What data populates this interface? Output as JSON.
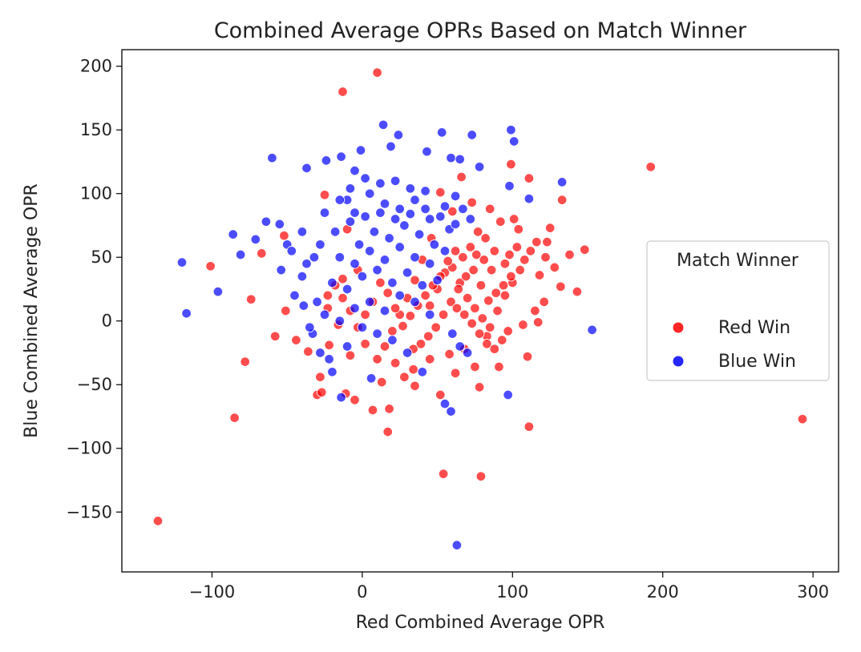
{
  "chart_data": {
    "type": "scatter",
    "title": "Combined Average OPRs Based on Match Winner",
    "xlabel": "Red Combined Average OPR",
    "ylabel": "Blue Combined Average OPR",
    "xlim": [
      -160,
      317
    ],
    "ylim": [
      -197,
      213
    ],
    "xticks": [
      -100,
      0,
      100,
      200,
      300
    ],
    "yticks": [
      -150,
      -100,
      -50,
      0,
      50,
      100,
      150,
      200
    ],
    "xtick_labels": [
      "−100",
      "0",
      "100",
      "200",
      "300"
    ],
    "ytick_labels": [
      "−150",
      "−100",
      "−50",
      "0",
      "50",
      "100",
      "150",
      "200"
    ],
    "grid": false,
    "legend": {
      "title": "Match Winner",
      "placement": "center-right",
      "entries": [
        "Red Win",
        "Blue Win"
      ]
    },
    "series": [
      {
        "name": "Red Win",
        "color": "#ff0000",
        "points": [
          [
            10,
            195
          ],
          [
            -13,
            180
          ],
          [
            192,
            121
          ],
          [
            293,
            -77
          ],
          [
            -136,
            -157
          ],
          [
            -85,
            -76
          ],
          [
            -78,
            -32
          ],
          [
            -101,
            43
          ],
          [
            -74,
            17
          ],
          [
            -67,
            53
          ],
          [
            -58,
            -12
          ],
          [
            -52,
            67
          ],
          [
            -51,
            8
          ],
          [
            -44,
            -15
          ],
          [
            -36,
            -24
          ],
          [
            -30,
            -58
          ],
          [
            -27,
            -56
          ],
          [
            -28,
            -44
          ],
          [
            -25,
            99
          ],
          [
            -11,
            -57
          ],
          [
            -5,
            -62
          ],
          [
            7,
            -70
          ],
          [
            18,
            -69
          ],
          [
            17,
            -87
          ],
          [
            13,
            -48
          ],
          [
            28,
            -44
          ],
          [
            35,
            -51
          ],
          [
            54,
            -120
          ],
          [
            79,
            -122
          ],
          [
            78,
            -52
          ],
          [
            52,
            -58
          ],
          [
            62,
            -41
          ],
          [
            75,
            -36
          ],
          [
            91,
            -36
          ],
          [
            111,
            -83
          ],
          [
            110,
            -28
          ],
          [
            148,
            56
          ],
          [
            143,
            23
          ],
          [
            133,
            95
          ],
          [
            132,
            27
          ],
          [
            125,
            73
          ],
          [
            121,
            15
          ],
          [
            117,
            -1
          ],
          [
            111,
            112
          ],
          [
            99,
            123
          ],
          [
            101,
            80
          ],
          [
            123,
            62
          ],
          [
            -10,
            72
          ],
          [
            -3,
            40
          ],
          [
            -13,
            33
          ],
          [
            -23,
            20
          ],
          [
            -16,
            -3
          ],
          [
            -22,
            -19
          ],
          [
            -8,
            -27
          ],
          [
            2,
            -18
          ],
          [
            10,
            -30
          ],
          [
            22,
            -33
          ],
          [
            34,
            -38
          ],
          [
            45,
            -30
          ],
          [
            58,
            -26
          ],
          [
            68,
            -22
          ],
          [
            83,
            -12
          ],
          [
            97,
            -8
          ],
          [
            107,
            -3
          ],
          [
            115,
            8
          ],
          [
            118,
            36
          ],
          [
            122,
            50
          ],
          [
            128,
            42
          ],
          [
            138,
            52
          ],
          [
            66,
            113
          ],
          [
            73,
            93
          ],
          [
            85,
            88
          ],
          [
            92,
            78
          ],
          [
            104,
            72
          ],
          [
            60,
            86
          ],
          [
            52,
            101
          ],
          [
            46,
            65
          ],
          [
            40,
            48
          ],
          [
            35,
            32
          ],
          [
            30,
            18
          ],
          [
            25,
            5
          ],
          [
            20,
            -8
          ],
          [
            15,
            -20
          ],
          [
            45,
            12
          ],
          [
            50,
            25
          ],
          [
            55,
            38
          ],
          [
            60,
            42
          ],
          [
            65,
            30
          ],
          [
            70,
            18
          ],
          [
            75,
            10
          ],
          [
            80,
            2
          ],
          [
            85,
            -5
          ],
          [
            90,
            8
          ],
          [
            95,
            20
          ],
          [
            100,
            30
          ],
          [
            105,
            40
          ],
          [
            88,
            55
          ],
          [
            82,
            65
          ],
          [
            77,
            70
          ],
          [
            72,
            58
          ],
          [
            67,
            50
          ],
          [
            62,
            55
          ],
          [
            57,
            47
          ],
          [
            52,
            35
          ],
          [
            47,
            28
          ],
          [
            42,
            20
          ],
          [
            37,
            12
          ],
          [
            32,
            4
          ],
          [
            27,
            -4
          ],
          [
            22,
            10
          ],
          [
            17,
            22
          ],
          [
            12,
            30
          ],
          [
            7,
            15
          ],
          [
            2,
            5
          ],
          [
            -3,
            -5
          ],
          [
            -8,
            8
          ],
          [
            -13,
            18
          ],
          [
            -18,
            28
          ],
          [
            -23,
            10
          ],
          [
            95,
            45
          ],
          [
            98,
            52
          ],
          [
            103,
            58
          ],
          [
            108,
            48
          ],
          [
            112,
            55
          ],
          [
            116,
            62
          ],
          [
            99,
            35
          ],
          [
            94,
            28
          ],
          [
            89,
            22
          ],
          [
            84,
            16
          ],
          [
            79,
            28
          ],
          [
            74,
            40
          ],
          [
            69,
            35
          ],
          [
            64,
            25
          ],
          [
            59,
            15
          ],
          [
            54,
            5
          ],
          [
            49,
            -5
          ],
          [
            44,
            -12
          ],
          [
            39,
            -18
          ],
          [
            34,
            -22
          ],
          [
            63,
            10
          ],
          [
            68,
            5
          ],
          [
            73,
            -2
          ],
          [
            78,
            -10
          ],
          [
            83,
            -18
          ],
          [
            88,
            -22
          ],
          [
            93,
            -15
          ],
          [
            86,
            40
          ],
          [
            81,
            48
          ],
          [
            76,
            52
          ]
        ]
      },
      {
        "name": "Blue Win",
        "color": "#0000ff",
        "points": [
          [
            14,
            154
          ],
          [
            24,
            146
          ],
          [
            53,
            148
          ],
          [
            99,
            150
          ],
          [
            73,
            146
          ],
          [
            101,
            141
          ],
          [
            -60,
            128
          ],
          [
            -37,
            120
          ],
          [
            -24,
            126
          ],
          [
            -14,
            129
          ],
          [
            -1,
            134
          ],
          [
            19,
            137
          ],
          [
            43,
            133
          ],
          [
            59,
            128
          ],
          [
            65,
            127
          ],
          [
            78,
            121
          ],
          [
            98,
            106
          ],
          [
            111,
            96
          ],
          [
            133,
            109
          ],
          [
            -120,
            46
          ],
          [
            -117,
            6
          ],
          [
            -96,
            23
          ],
          [
            -86,
            68
          ],
          [
            -81,
            52
          ],
          [
            -71,
            64
          ],
          [
            -64,
            78
          ],
          [
            -55,
            76
          ],
          [
            -54,
            40
          ],
          [
            -50,
            60
          ],
          [
            -47,
            55
          ],
          [
            -37,
            45
          ],
          [
            -33,
            -10
          ],
          [
            -39,
            12
          ],
          [
            153,
            -7
          ],
          [
            97,
            -58
          ],
          [
            55,
            -65
          ],
          [
            59,
            -71
          ],
          [
            63,
            -176
          ],
          [
            6,
            -45
          ],
          [
            -14,
            -60
          ],
          [
            -22,
            -30
          ],
          [
            -10,
            95
          ],
          [
            -5,
            85
          ],
          [
            5,
            100
          ],
          [
            15,
            92
          ],
          [
            25,
            88
          ],
          [
            35,
            95
          ],
          [
            45,
            80
          ],
          [
            55,
            90
          ],
          [
            -2,
            60
          ],
          [
            8,
            70
          ],
          [
            18,
            65
          ],
          [
            28,
            75
          ],
          [
            38,
            68
          ],
          [
            48,
            60
          ],
          [
            58,
            72
          ],
          [
            -15,
            50
          ],
          [
            -5,
            45
          ],
          [
            5,
            55
          ],
          [
            15,
            48
          ],
          [
            25,
            58
          ],
          [
            35,
            50
          ],
          [
            45,
            45
          ],
          [
            55,
            55
          ],
          [
            -20,
            30
          ],
          [
            -10,
            25
          ],
          [
            0,
            35
          ],
          [
            10,
            40
          ],
          [
            20,
            30
          ],
          [
            30,
            38
          ],
          [
            40,
            28
          ],
          [
            50,
            32
          ],
          [
            -25,
            5
          ],
          [
            -15,
            0
          ],
          [
            -5,
            10
          ],
          [
            5,
            15
          ],
          [
            15,
            8
          ],
          [
            25,
            20
          ],
          [
            35,
            15
          ],
          [
            45,
            5
          ],
          [
            22,
            110
          ],
          [
            32,
            104
          ],
          [
            42,
            102
          ],
          [
            12,
            108
          ],
          [
            2,
            112
          ],
          [
            -8,
            104
          ],
          [
            62,
            98
          ],
          [
            67,
            88
          ],
          [
            72,
            80
          ],
          [
            -28,
            60
          ],
          [
            -18,
            70
          ],
          [
            -8,
            78
          ],
          [
            2,
            82
          ],
          [
            12,
            85
          ],
          [
            22,
            80
          ],
          [
            32,
            84
          ],
          [
            42,
            88
          ],
          [
            52,
            82
          ],
          [
            62,
            76
          ],
          [
            40,
            -40
          ],
          [
            30,
            -25
          ],
          [
            20,
            -15
          ],
          [
            10,
            -10
          ],
          [
            0,
            -5
          ],
          [
            -10,
            -20
          ],
          [
            -20,
            -40
          ],
          [
            70,
            -25
          ],
          [
            65,
            -20
          ],
          [
            60,
            -10
          ],
          [
            -40,
            35
          ],
          [
            -45,
            20
          ],
          [
            -30,
            15
          ],
          [
            -35,
            -5
          ],
          [
            -28,
            -25
          ],
          [
            -32,
            50
          ],
          [
            -40,
            70
          ],
          [
            -25,
            85
          ],
          [
            -15,
            95
          ],
          [
            -5,
            118
          ]
        ]
      }
    ]
  }
}
